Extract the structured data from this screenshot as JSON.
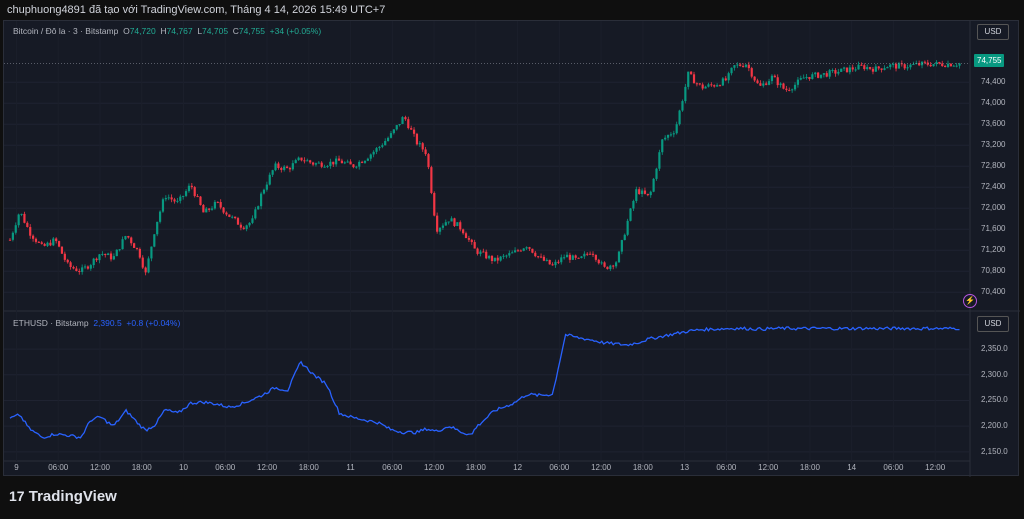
{
  "header": {
    "text": "chuphuong4891 đã tạo với TradingView.com, Tháng 4 14, 2026 15:49 UTC+7"
  },
  "pane1": {
    "symbol": "Bitcoin / Đô la · 3 · Bitstamp",
    "o_label": "O",
    "o": "74,720",
    "h_label": "H",
    "h": "74,767",
    "l_label": "L",
    "l": "74,705",
    "c_label": "C",
    "c": "74,755",
    "change": "+34 (+0.05%)",
    "currency": "USD",
    "last_price": "74,755",
    "accent_up": "#089981",
    "accent_down": "#f23645"
  },
  "pane2": {
    "symbol": "ETHUSD · Bitstamp",
    "value": "2,390.5",
    "change": "+0.8 (+0.04%)",
    "currency": "USD",
    "line_color": "#2962ff"
  },
  "footer": {
    "brand": "TradingView"
  },
  "chart_data": [
    {
      "type": "candlestick",
      "series": [
        {
          "name": "Bitcoin / Đô la · 3 · Bitstamp"
        }
      ],
      "x_tick_labels": [
        "9",
        "06:00",
        "12:00",
        "18:00",
        "10",
        "06:00",
        "12:00",
        "18:00",
        "11",
        "06:00",
        "12:00",
        "18:00",
        "12",
        "06:00",
        "12:00",
        "18:00",
        "13",
        "06:00",
        "12:00",
        "18:00",
        "14",
        "06:00",
        "12:00"
      ],
      "y_tick_labels": [
        "70,400",
        "70,800",
        "71,200",
        "71,600",
        "72,000",
        "72,400",
        "72,800",
        "73,200",
        "73,600",
        "74,000",
        "74,400"
      ],
      "ylim": [
        70100,
        74900
      ],
      "t": [
        0,
        3,
        6,
        10,
        14,
        18,
        22,
        25,
        28,
        32,
        36,
        40,
        42,
        45,
        48,
        52,
        56,
        60,
        64,
        68,
        72,
        75,
        78,
        82,
        86,
        90,
        94,
        98,
        102,
        106,
        110,
        114,
        118,
        122,
        126,
        129,
        132,
        136,
        140,
        143,
        144,
        150,
        156,
        160,
        164,
        168,
        172,
        176,
        180,
        184,
        188,
        191,
        194,
        198,
        202,
        206,
        210,
        214,
        218,
        222,
        224,
        228,
        232,
        236,
        240,
        243,
        246,
        252,
        256,
        260,
        264,
        268,
        272,
        276,
        280,
        282,
        285,
        287,
        290,
        294
      ],
      "close": [
        71400,
        71950,
        71550,
        71250,
        71400,
        70900,
        70800,
        70950,
        71150,
        71050,
        71500,
        71150,
        70750,
        71650,
        72250,
        72100,
        72450,
        71900,
        72100,
        71850,
        71650,
        71750,
        72300,
        72800,
        72750,
        72950,
        72850,
        72850,
        72900,
        72800,
        72950,
        73150,
        73400,
        73750,
        73250,
        73050,
        71600,
        71800,
        71600,
        71300,
        71200,
        71000,
        71150,
        71300,
        71050,
        70900,
        71100,
        71000,
        71200,
        70850,
        71000,
        71700,
        72350,
        72200,
        73300,
        73500,
        74550,
        74300,
        74350,
        74450,
        74700,
        74755,
        74300,
        74500,
        74250,
        74350,
        74500,
        74550,
        74600,
        74650,
        74700,
        74650,
        74720,
        74700,
        74730,
        74740,
        74750,
        74745,
        74750,
        74755
      ]
    },
    {
      "type": "line",
      "series": [
        {
          "name": "ETHUSD · Bitstamp"
        }
      ],
      "y_tick_labels": [
        "2,150.0",
        "2,200.0",
        "2,250.0",
        "2,300.0",
        "2,350.0"
      ],
      "ylim": [
        2140,
        2395
      ],
      "t": [
        0,
        3,
        6,
        10,
        14,
        18,
        22,
        25,
        28,
        32,
        36,
        40,
        42,
        45,
        48,
        52,
        56,
        60,
        64,
        68,
        72,
        75,
        78,
        82,
        86,
        90,
        94,
        98,
        102,
        106,
        110,
        114,
        118,
        122,
        126,
        129,
        132,
        136,
        140,
        143,
        144,
        150,
        156,
        160,
        164,
        168,
        172,
        176,
        180,
        184,
        188,
        191,
        194,
        198,
        202,
        206,
        210,
        214,
        218,
        222,
        224,
        228,
        232,
        236,
        240,
        243,
        246,
        252,
        256,
        260,
        264,
        268,
        272,
        276,
        280,
        282,
        285,
        287,
        290,
        294
      ],
      "values": [
        2215,
        2222,
        2195,
        2178,
        2185,
        2182,
        2178,
        2212,
        2218,
        2200,
        2230,
        2203,
        2192,
        2203,
        2232,
        2225,
        2245,
        2247,
        2243,
        2237,
        2244,
        2252,
        2260,
        2275,
        2270,
        2325,
        2300,
        2282,
        2225,
        2217,
        2212,
        2207,
        2193,
        2188,
        2188,
        2195,
        2190,
        2200,
        2188,
        2183,
        2196,
        2230,
        2245,
        2262,
        2260,
        2262,
        2378,
        2372,
        2368,
        2362,
        2360,
        2358,
        2362,
        2370,
        2375,
        2380,
        2385,
        2388,
        2389,
        2390,
        2390.5,
        2390,
        2389,
        2390,
        2390.5,
        2390,
        2390,
        2390.5,
        2390,
        2390,
        2390.5,
        2390,
        2390,
        2390.5,
        2390,
        2390,
        2390.5,
        2390,
        2390,
        2390.5
      ]
    }
  ]
}
